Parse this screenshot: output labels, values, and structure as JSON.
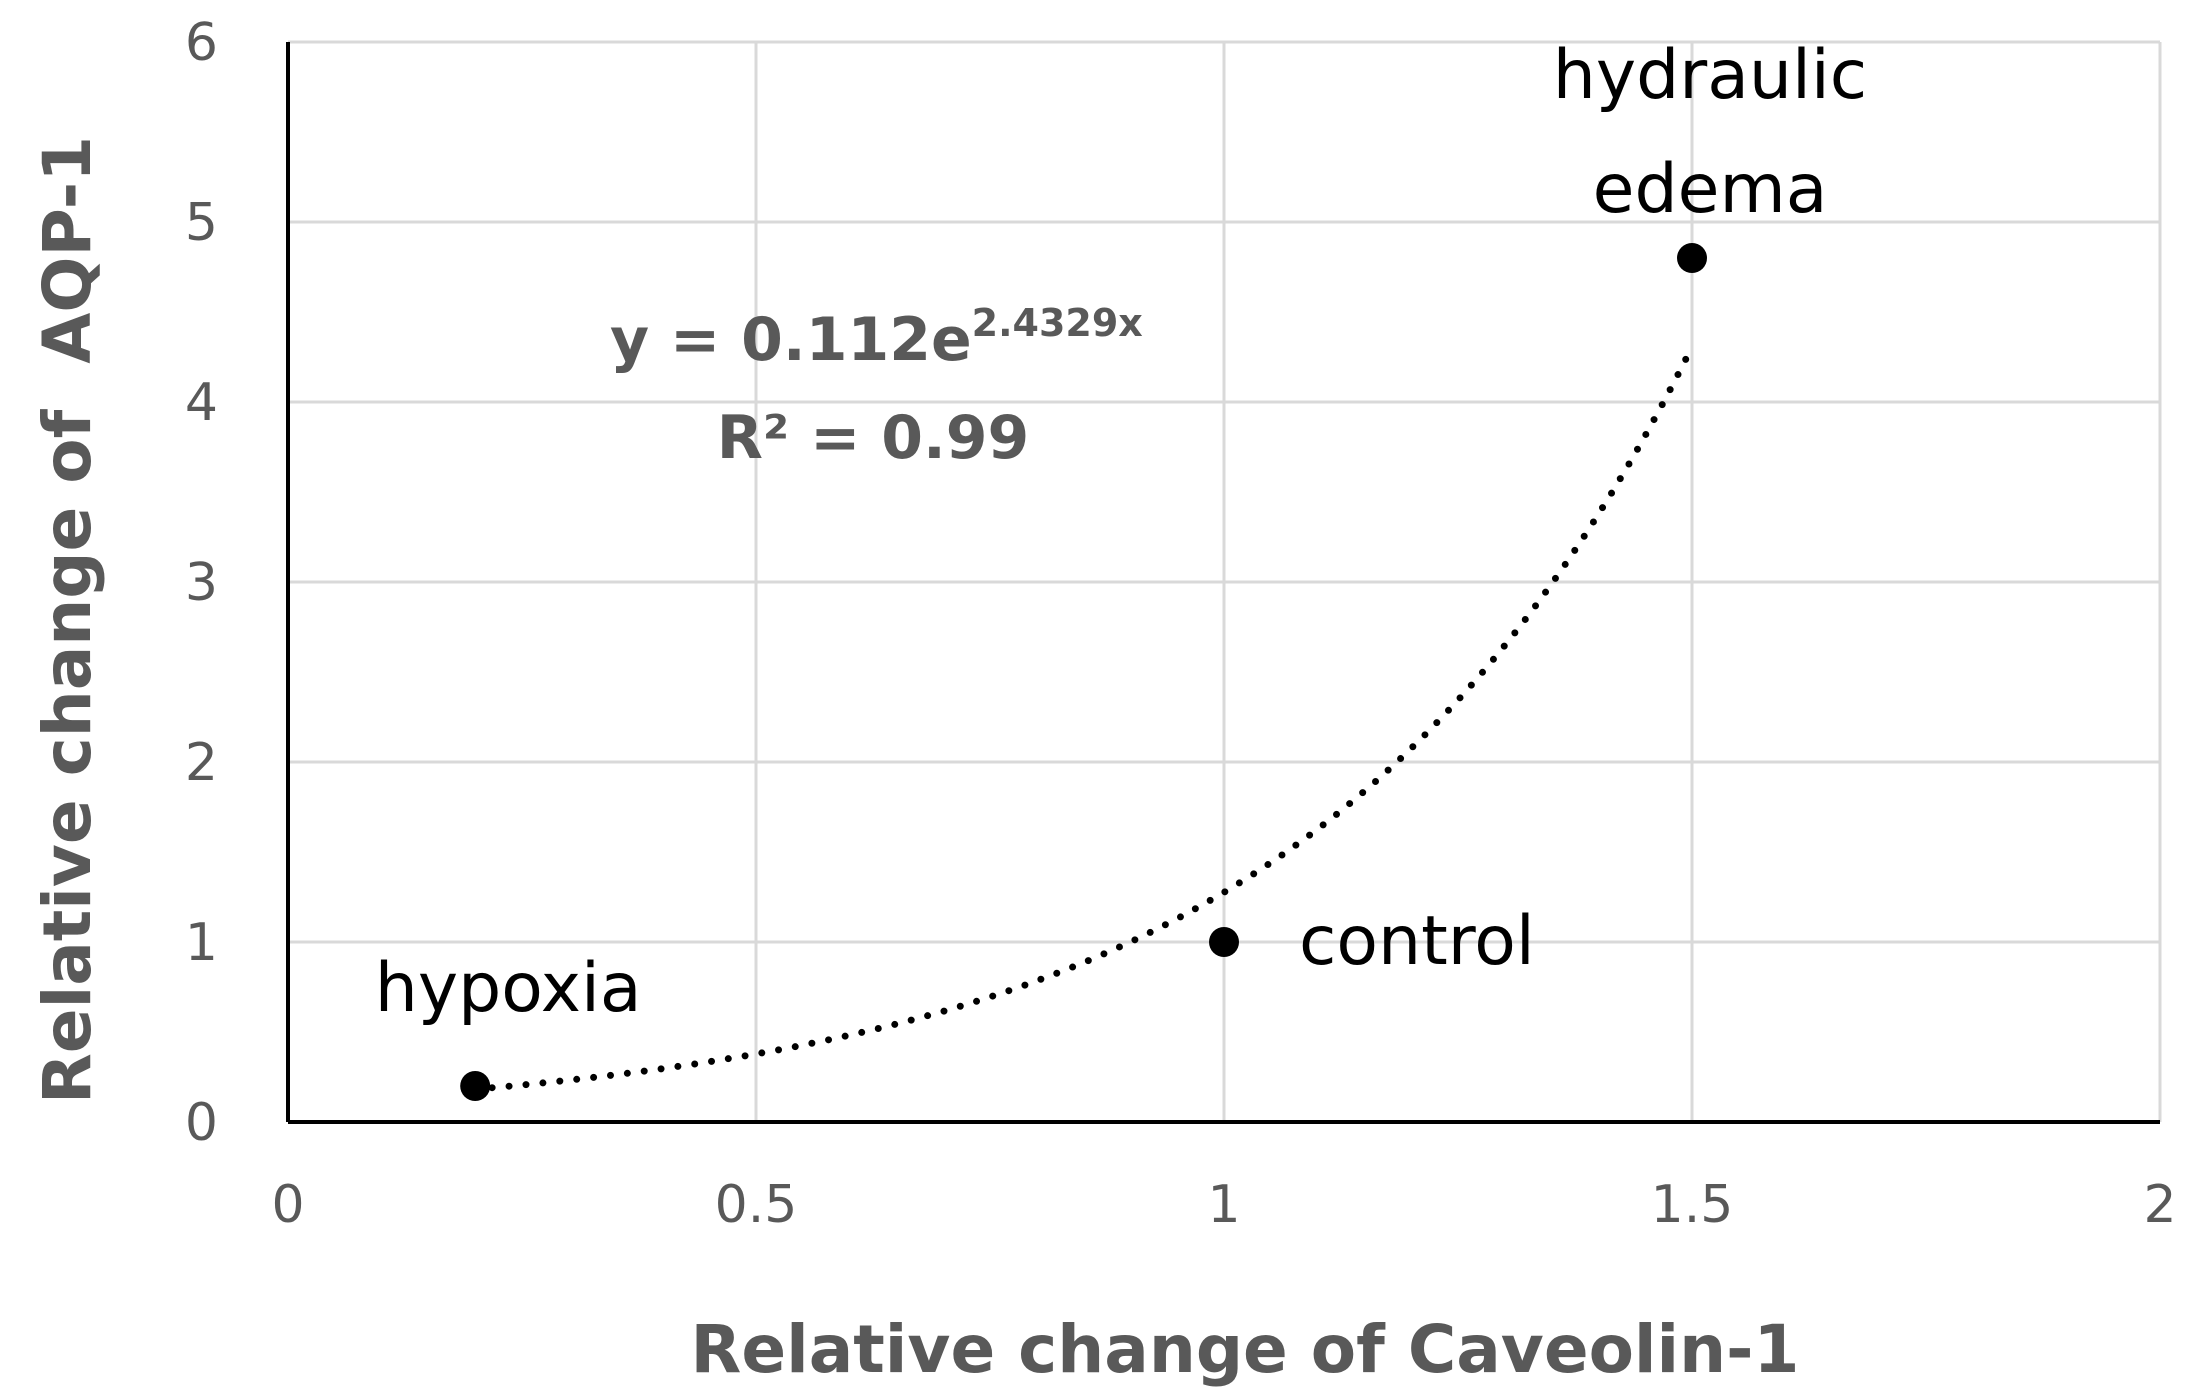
{
  "chart_data": {
    "type": "scatter",
    "xlabel": "Relative change of Caveolin-1",
    "ylabel": "Relative change of  AQP-1",
    "xlim": [
      0,
      2
    ],
    "ylim": [
      0,
      6
    ],
    "x_ticks": [
      "0",
      "0.5",
      "1",
      "1.5",
      "2"
    ],
    "y_ticks": [
      "0",
      "1",
      "2",
      "3",
      "4",
      "5",
      "6"
    ],
    "grid": true,
    "points": [
      {
        "label": "hypoxia",
        "x": 0.2,
        "y": 0.2
      },
      {
        "label": "control",
        "x": 1.0,
        "y": 1.0
      },
      {
        "label": "hydraulic edema",
        "label_lines": [
          "hydraulic",
          "edema"
        ],
        "x": 1.5,
        "y": 4.8
      }
    ],
    "trendline": {
      "type": "exponential",
      "style": "dotted",
      "a": 0.112,
      "b": 2.4329,
      "x_range": [
        0.2,
        1.5
      ],
      "equation_main": "y = 0.112e",
      "equation_exponent": "2.4329x",
      "r_squared_text": "R² = 0.99"
    },
    "colors": {
      "axis": "#000000",
      "grid": "#d9d9d9",
      "text": "#595959",
      "marker": "#000000"
    }
  }
}
